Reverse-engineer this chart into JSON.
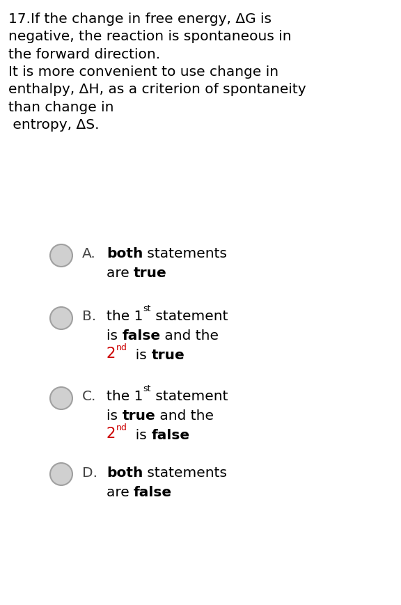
{
  "background_color": "#ffffff",
  "question_text": "17.If the change in free energy, ΔG is\nnegative, the reaction is spontaneous in\nthe forward direction.\nIt is more convenient to use change in\nenthalpy, ΔH, as a criterion of spontaneity\nthan change in\n entropy, ΔS.",
  "options": [
    {
      "letter": "A.",
      "lines": [
        [
          {
            "text": "both",
            "bold": true,
            "color": "#000000"
          },
          {
            "text": " statements",
            "bold": false,
            "color": "#000000"
          }
        ],
        [
          {
            "text": "are ",
            "bold": false,
            "color": "#000000"
          },
          {
            "text": "true",
            "bold": true,
            "color": "#000000"
          }
        ]
      ]
    },
    {
      "letter": "B.",
      "lines": [
        [
          {
            "text": "the 1",
            "bold": false,
            "color": "#000000"
          },
          {
            "text": "st",
            "bold": false,
            "color": "#000000",
            "super": true
          },
          {
            "text": " statement",
            "bold": false,
            "color": "#000000"
          }
        ],
        [
          {
            "text": "is ",
            "bold": false,
            "color": "#000000"
          },
          {
            "text": "false",
            "bold": true,
            "color": "#000000"
          },
          {
            "text": " and the",
            "bold": false,
            "color": "#000000"
          }
        ],
        [
          {
            "text": "2",
            "bold": false,
            "color": "#cc0000",
            "super2": true
          },
          {
            "text": "nd",
            "bold": false,
            "color": "#cc0000",
            "super": true
          },
          {
            "text": "  is ",
            "bold": false,
            "color": "#000000"
          },
          {
            "text": "true",
            "bold": true,
            "color": "#000000"
          }
        ]
      ]
    },
    {
      "letter": "C.",
      "lines": [
        [
          {
            "text": "the 1",
            "bold": false,
            "color": "#000000"
          },
          {
            "text": "st",
            "bold": false,
            "color": "#000000",
            "super": true
          },
          {
            "text": " statement",
            "bold": false,
            "color": "#000000"
          }
        ],
        [
          {
            "text": "is ",
            "bold": false,
            "color": "#000000"
          },
          {
            "text": "true",
            "bold": true,
            "color": "#000000"
          },
          {
            "text": " and the",
            "bold": false,
            "color": "#000000"
          }
        ],
        [
          {
            "text": "2",
            "bold": false,
            "color": "#cc0000",
            "super2": true
          },
          {
            "text": "nd",
            "bold": false,
            "color": "#cc0000",
            "super": true
          },
          {
            "text": "  is ",
            "bold": false,
            "color": "#000000"
          },
          {
            "text": "false",
            "bold": true,
            "color": "#000000"
          }
        ]
      ]
    },
    {
      "letter": "D.",
      "lines": [
        [
          {
            "text": "both",
            "bold": true,
            "color": "#000000"
          },
          {
            "text": " statements",
            "bold": false,
            "color": "#000000"
          }
        ],
        [
          {
            "text": "are ",
            "bold": false,
            "color": "#000000"
          },
          {
            "text": "false",
            "bold": true,
            "color": "#000000"
          }
        ]
      ]
    }
  ],
  "font_size": 14.5,
  "fig_width": 5.76,
  "fig_height": 8.7,
  "dpi": 100
}
